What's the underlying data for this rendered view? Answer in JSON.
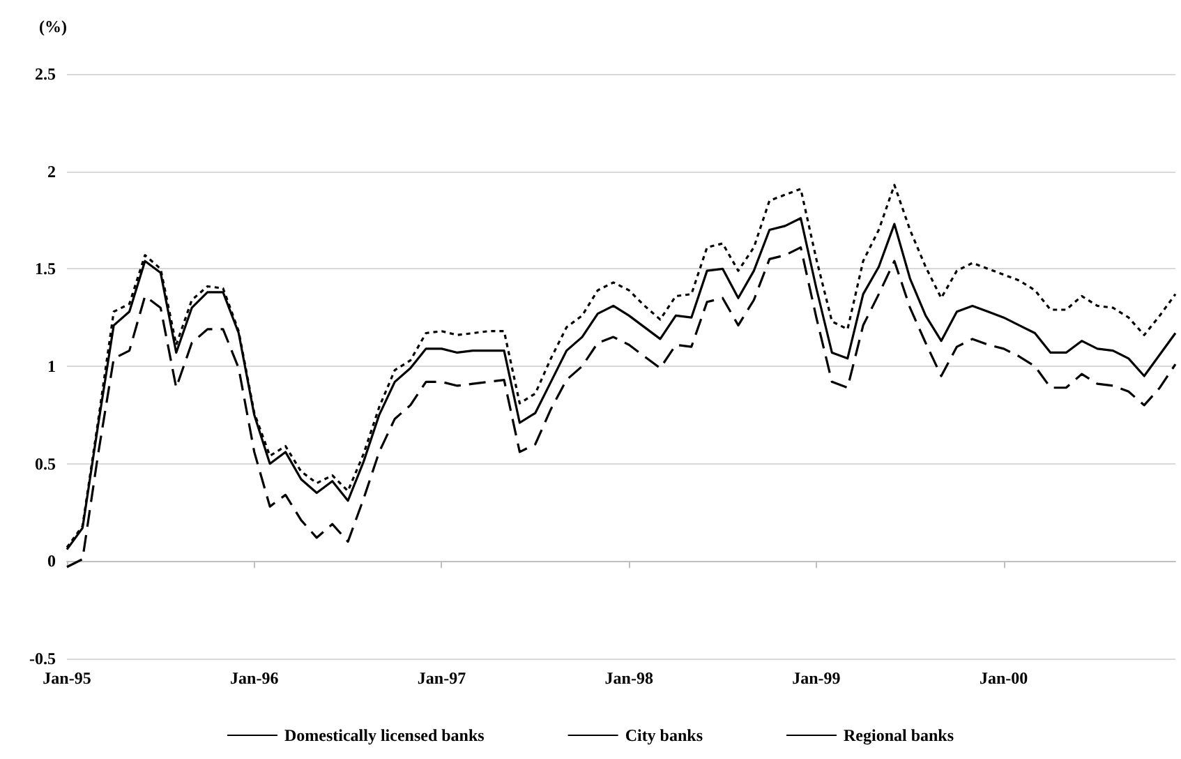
{
  "chart_data": {
    "type": "line",
    "ylabel": "(%)",
    "categories": [
      "Jan-95",
      null,
      null,
      null,
      null,
      null,
      null,
      null,
      null,
      null,
      null,
      null,
      "Jan-96",
      null,
      null,
      null,
      null,
      null,
      null,
      null,
      null,
      null,
      null,
      null,
      "Jan-97",
      null,
      null,
      null,
      null,
      null,
      null,
      null,
      null,
      null,
      null,
      null,
      "Jan-98",
      null,
      null,
      null,
      null,
      null,
      null,
      null,
      null,
      null,
      null,
      null,
      "Jan-99",
      null,
      null,
      null,
      null,
      null,
      null,
      null,
      null,
      null,
      null,
      null,
      "Jan-00",
      null,
      null,
      null,
      null,
      null,
      null,
      null,
      null,
      null,
      null,
      null
    ],
    "series": [
      {
        "name": "Domestically licensed banks",
        "color": "#000000",
        "line_style": "solid",
        "values": [
          0.06,
          0.17,
          0.7,
          1.21,
          1.28,
          1.54,
          1.48,
          1.07,
          1.3,
          1.38,
          1.38,
          1.17,
          0.75,
          0.5,
          0.56,
          0.42,
          0.35,
          0.41,
          0.31,
          0.51,
          0.75,
          0.92,
          0.99,
          1.09,
          1.09,
          1.07,
          1.08,
          1.08,
          1.08,
          0.71,
          0.76,
          0.92,
          1.08,
          1.15,
          1.27,
          1.31,
          1.26,
          1.2,
          1.14,
          1.26,
          1.25,
          1.49,
          1.5,
          1.35,
          1.49,
          1.7,
          1.72,
          1.76,
          1.4,
          1.07,
          1.04,
          1.37,
          1.51,
          1.73,
          1.45,
          1.26,
          1.13,
          1.28,
          1.31,
          1.28,
          1.25,
          1.21,
          1.17,
          1.07,
          1.07,
          1.13,
          1.09,
          1.08,
          1.04,
          0.95,
          1.06,
          1.17
        ]
      },
      {
        "name": "City banks",
        "color": "#000000",
        "line_style": "dashed",
        "values": [
          -0.03,
          0.01,
          0.55,
          1.04,
          1.08,
          1.36,
          1.3,
          0.89,
          1.12,
          1.19,
          1.19,
          0.99,
          0.56,
          0.28,
          0.34,
          0.21,
          0.12,
          0.19,
          0.1,
          0.32,
          0.56,
          0.73,
          0.8,
          0.92,
          0.92,
          0.9,
          0.91,
          0.92,
          0.93,
          0.56,
          0.6,
          0.78,
          0.93,
          1.0,
          1.12,
          1.15,
          1.11,
          1.05,
          0.99,
          1.11,
          1.1,
          1.33,
          1.35,
          1.21,
          1.34,
          1.55,
          1.57,
          1.61,
          1.25,
          0.92,
          0.89,
          1.21,
          1.37,
          1.54,
          1.3,
          1.12,
          0.95,
          1.1,
          1.14,
          1.11,
          1.09,
          1.05,
          1.0,
          0.89,
          0.89,
          0.96,
          0.91,
          0.9,
          0.87,
          0.8,
          0.89,
          1.01
        ]
      },
      {
        "name": "Regional banks",
        "color": "#000000",
        "line_style": "dotted",
        "values": [
          0.07,
          0.18,
          0.72,
          1.28,
          1.32,
          1.57,
          1.5,
          1.11,
          1.34,
          1.41,
          1.4,
          1.18,
          0.76,
          0.54,
          0.59,
          0.46,
          0.4,
          0.44,
          0.36,
          0.55,
          0.79,
          0.98,
          1.03,
          1.17,
          1.18,
          1.16,
          1.17,
          1.18,
          1.18,
          0.81,
          0.86,
          1.04,
          1.2,
          1.26,
          1.39,
          1.43,
          1.39,
          1.31,
          1.24,
          1.36,
          1.37,
          1.61,
          1.63,
          1.49,
          1.61,
          1.85,
          1.88,
          1.91,
          1.55,
          1.23,
          1.19,
          1.54,
          1.7,
          1.93,
          1.7,
          1.51,
          1.35,
          1.49,
          1.53,
          1.5,
          1.47,
          1.44,
          1.39,
          1.29,
          1.29,
          1.36,
          1.31,
          1.3,
          1.25,
          1.16,
          1.26,
          1.37
        ]
      }
    ],
    "ylim": [
      -0.5,
      2.5
    ],
    "yticks": [
      -0.5,
      0,
      0.5,
      1,
      1.5,
      2,
      2.5
    ],
    "grid": "y",
    "legend": "bottom",
    "marker": "none"
  }
}
